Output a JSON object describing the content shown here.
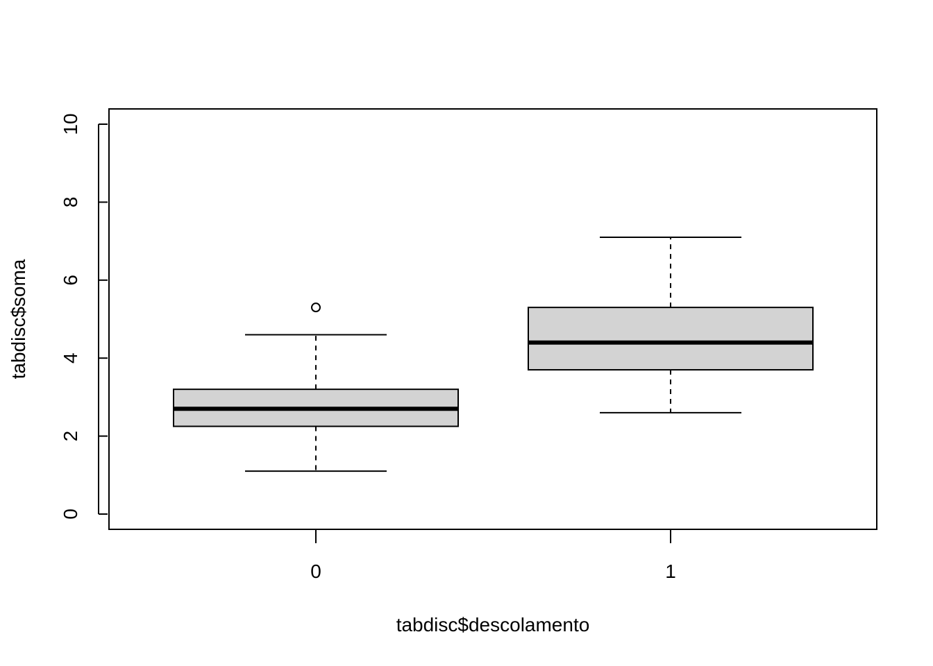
{
  "chart_data": {
    "type": "boxplot",
    "title": "",
    "xlabel": "tabdisc$descolamento",
    "ylabel": "tabdisc$soma",
    "ylim": [
      0,
      10
    ],
    "y_ticks": [
      "0",
      "2",
      "4",
      "6",
      "8",
      "10"
    ],
    "categories": [
      "0",
      "1"
    ],
    "boxes": [
      {
        "category": "0",
        "min": 1.1,
        "q1": 2.25,
        "median": 2.7,
        "q3": 3.2,
        "max": 4.6,
        "outliers": [
          5.3
        ]
      },
      {
        "category": "1",
        "min": 2.6,
        "q1": 3.7,
        "median": 4.4,
        "q3": 5.3,
        "max": 7.1,
        "outliers": []
      }
    ],
    "box_fill": "#d3d3d3",
    "grid": false,
    "legend": "none"
  }
}
